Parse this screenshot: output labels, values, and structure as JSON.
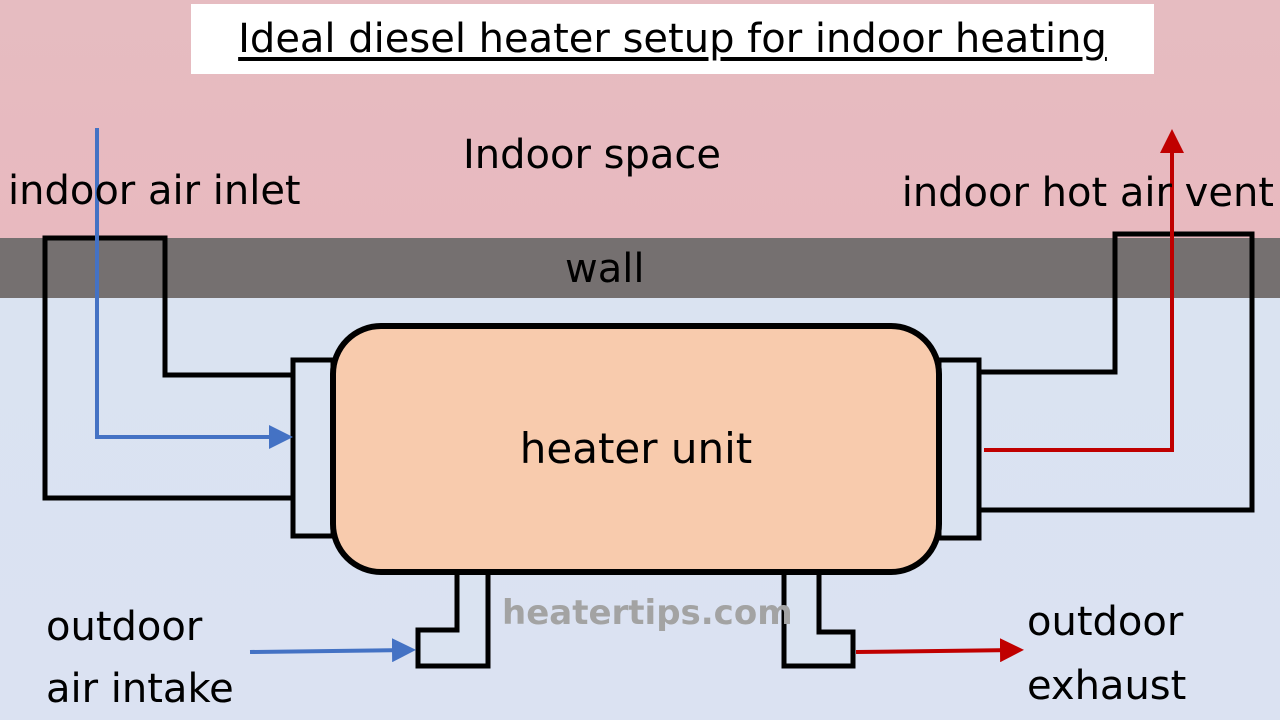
{
  "title": "Ideal diesel heater setup for indoor heating",
  "labels": {
    "indoor_space": "Indoor space",
    "indoor_air_inlet": "indoor air inlet",
    "indoor_hot_air_vent": "indoor hot air vent",
    "wall": "wall",
    "heater_unit": "heater unit",
    "outdoor_air_intake": [
      "outdoor",
      "air intake"
    ],
    "outdoor_exhaust": [
      "outdoor",
      "exhaust"
    ]
  },
  "watermark": "heatertips.com",
  "colors": {
    "indoor_background": "#e6bcc1",
    "outdoor_background": "#dae3f1",
    "wall": "#757070",
    "heater_unit": "#f8cbad",
    "cold_air": "#4472c4",
    "hot_air": "#c00000",
    "outline": "#000000"
  }
}
